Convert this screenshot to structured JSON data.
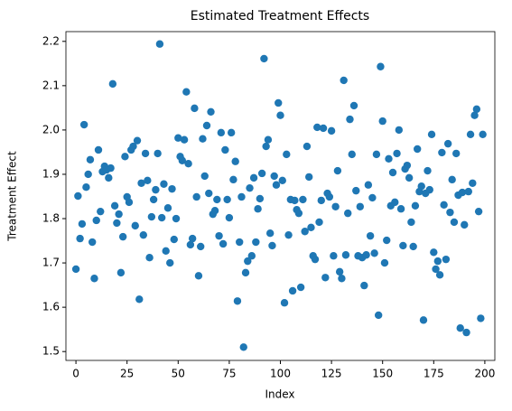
{
  "chart_data": {
    "type": "scatter",
    "title": "Estimated Treatment Effects",
    "x_label": "Index",
    "y_label": "Treatment Effect",
    "color": "#1f77b4",
    "x": [
      0,
      1,
      2,
      3,
      4,
      5,
      6,
      7,
      8,
      9,
      10,
      11,
      12,
      13,
      14,
      15,
      16,
      17,
      18,
      19,
      20,
      21,
      22,
      23,
      24,
      25,
      26,
      27,
      28,
      29,
      30,
      31,
      32,
      33,
      34,
      35,
      36,
      37,
      38,
      39,
      40,
      41,
      42,
      43,
      44,
      45,
      46,
      47,
      48,
      49,
      50,
      51,
      52,
      53,
      54,
      55,
      56,
      57,
      58,
      59,
      60,
      61,
      62,
      63,
      64,
      65,
      66,
      67,
      68,
      69,
      70,
      71,
      72,
      73,
      74,
      75,
      76,
      77,
      78,
      79,
      80,
      81,
      82,
      83,
      84,
      85,
      86,
      87,
      88,
      89,
      90,
      91,
      92,
      93,
      94,
      95,
      96,
      97,
      98,
      99,
      100,
      101,
      102,
      103,
      104,
      105,
      106,
      107,
      108,
      109,
      110,
      111,
      112,
      113,
      114,
      115,
      116,
      117,
      118,
      119,
      120,
      121,
      122,
      123,
      124,
      125,
      126,
      127,
      128,
      129,
      130,
      131,
      132,
      133,
      134,
      135,
      136,
      137,
      138,
      139,
      140,
      141,
      142,
      143,
      144,
      145,
      146,
      147,
      148,
      149,
      150,
      151,
      152,
      153,
      154,
      155,
      156,
      157,
      158,
      159,
      160,
      161,
      162,
      163,
      164,
      165,
      166,
      167,
      168,
      169,
      170,
      171,
      172,
      173,
      174,
      175,
      176,
      177,
      178,
      179,
      180,
      181,
      182,
      183,
      184,
      185,
      186,
      187,
      188,
      189,
      190,
      191,
      192,
      193,
      194,
      195,
      196,
      197,
      198,
      199
    ],
    "values": [
      1.686,
      1.851,
      1.755,
      1.788,
      2.012,
      1.871,
      1.9,
      1.933,
      1.747,
      1.665,
      1.796,
      1.955,
      1.816,
      1.906,
      1.918,
      1.91,
      1.892,
      1.914,
      2.104,
      1.829,
      1.79,
      1.81,
      1.678,
      1.759,
      1.94,
      1.849,
      1.837,
      1.955,
      1.963,
      1.784,
      1.976,
      1.618,
      1.88,
      1.763,
      1.947,
      1.886,
      1.712,
      1.804,
      1.843,
      1.865,
      1.947,
      2.194,
      1.802,
      1.878,
      1.727,
      1.824,
      1.7,
      1.867,
      1.753,
      1.8,
      1.982,
      1.94,
      1.931,
      1.978,
      2.086,
      1.924,
      1.741,
      1.755,
      2.049,
      1.849,
      1.671,
      1.737,
      1.98,
      1.896,
      2.01,
      1.857,
      2.041,
      1.81,
      1.818,
      1.843,
      1.761,
      1.994,
      1.743,
      1.955,
      1.843,
      1.802,
      1.994,
      1.888,
      1.929,
      1.614,
      1.747,
      1.849,
      1.51,
      1.678,
      1.704,
      1.869,
      1.716,
      1.892,
      1.747,
      1.822,
      1.845,
      1.902,
      2.161,
      1.963,
      1.978,
      1.767,
      1.739,
      1.896,
      1.876,
      2.061,
      2.033,
      1.886,
      1.61,
      1.945,
      1.763,
      1.843,
      1.637,
      1.841,
      1.82,
      1.812,
      1.645,
      1.843,
      1.771,
      1.963,
      1.894,
      1.78,
      1.716,
      1.708,
      2.006,
      1.792,
      1.841,
      2.004,
      1.667,
      1.857,
      1.849,
      1.998,
      1.716,
      1.827,
      1.908,
      1.68,
      1.665,
      2.112,
      1.718,
      1.812,
      2.024,
      1.945,
      2.055,
      1.863,
      1.716,
      1.827,
      1.712,
      1.649,
      1.718,
      1.876,
      1.761,
      1.847,
      1.722,
      1.945,
      1.582,
      2.143,
      2.02,
      1.7,
      1.751,
      1.935,
      1.829,
      1.904,
      1.837,
      1.947,
      2.0,
      1.822,
      1.739,
      1.912,
      1.92,
      1.892,
      1.792,
      1.737,
      1.829,
      1.957,
      1.861,
      1.873,
      1.571,
      1.857,
      1.908,
      1.865,
      1.99,
      1.724,
      1.686,
      1.704,
      1.673,
      1.949,
      1.831,
      1.708,
      1.969,
      1.814,
      1.888,
      1.792,
      1.947,
      1.853,
      1.553,
      1.859,
      1.786,
      1.543,
      1.861,
      1.99,
      1.88,
      2.033,
      2.047,
      1.816,
      1.575,
      1.99
    ],
    "xlim": [
      -4.9,
      204.9
    ],
    "xticks": [
      0,
      25,
      50,
      75,
      100,
      125,
      150,
      175,
      200
    ],
    "ylim": [
      1.48,
      2.222
    ],
    "yticks": [
      {
        "value": 1.5,
        "label": "1.5"
      },
      1.6,
      1.7,
      1.8,
      1.9,
      {
        "value": 2.0,
        "label": "2.0"
      },
      2.1,
      2.2
    ]
  }
}
